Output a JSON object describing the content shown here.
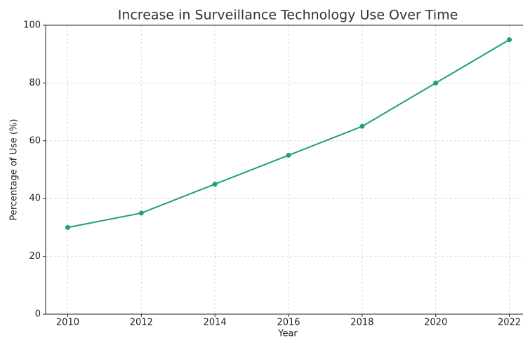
{
  "chart_data": {
    "type": "line",
    "title": "Increase in Surveillance Technology Use Over Time",
    "xlabel": "Year",
    "ylabel": "Percentage of Use (%)",
    "x": [
      2010,
      2012,
      2014,
      2016,
      2018,
      2020,
      2022
    ],
    "series": [
      {
        "name": "Percentage of Use",
        "color": "#1f9e7e",
        "values": [
          30,
          35,
          45,
          55,
          65,
          80,
          95
        ]
      }
    ],
    "xlim": [
      2009.4,
      2022.6
    ],
    "xticks": [
      2010,
      2012,
      2014,
      2016,
      2018,
      2020,
      2022
    ],
    "ylim": [
      0,
      100
    ],
    "yticks": [
      0,
      20,
      40,
      60,
      80,
      100
    ],
    "grid": true
  }
}
